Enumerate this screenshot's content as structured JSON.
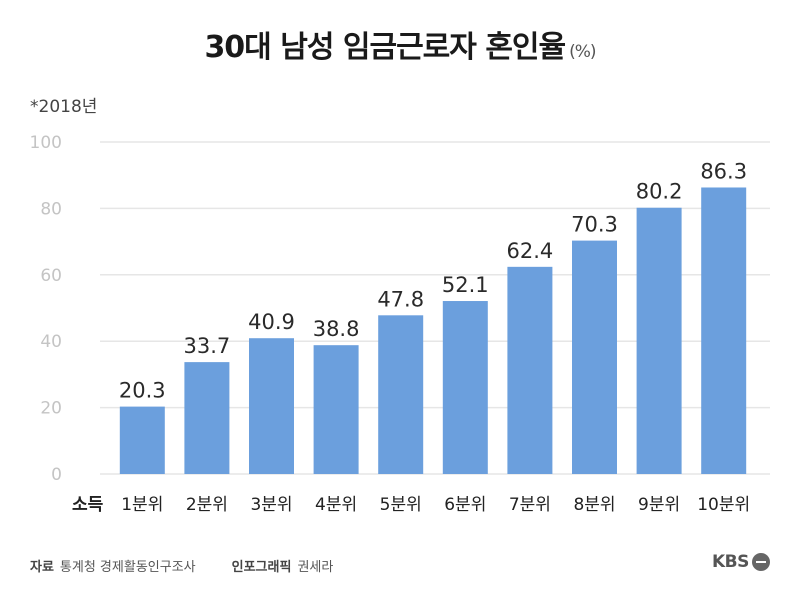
{
  "title": {
    "main": "30대 남성 임금근로자 혼인율",
    "unit": "(%)"
  },
  "note": "*2018년",
  "chart_data": {
    "type": "bar",
    "title": "30대 남성 임금근로자 혼인율",
    "xlabel": "소득",
    "ylabel": "",
    "categories": [
      "1분위",
      "2분위",
      "3분위",
      "4분위",
      "5분위",
      "6분위",
      "7분위",
      "8분위",
      "9분위",
      "10분위"
    ],
    "values": [
      20.3,
      33.7,
      40.9,
      38.8,
      47.8,
      52.1,
      62.4,
      70.3,
      80.2,
      86.3
    ],
    "value_labels": [
      "20.3",
      "33.7",
      "40.9",
      "38.8",
      "47.8",
      "52.1",
      "62.4",
      "70.3",
      "80.2",
      "86.3"
    ],
    "ylim": [
      0,
      100
    ],
    "yticks": [
      "0",
      "20",
      "40",
      "60",
      "80",
      "100"
    ],
    "grid": true,
    "bar_color": "#6b9fdd",
    "grid_color": "#e6e6e6"
  },
  "footer": {
    "source_label": "자료",
    "source": "통계청 경제활동인구조사",
    "graphic_label": "인포그래픽",
    "graphic_author": "권세라",
    "logo": "KBS"
  }
}
